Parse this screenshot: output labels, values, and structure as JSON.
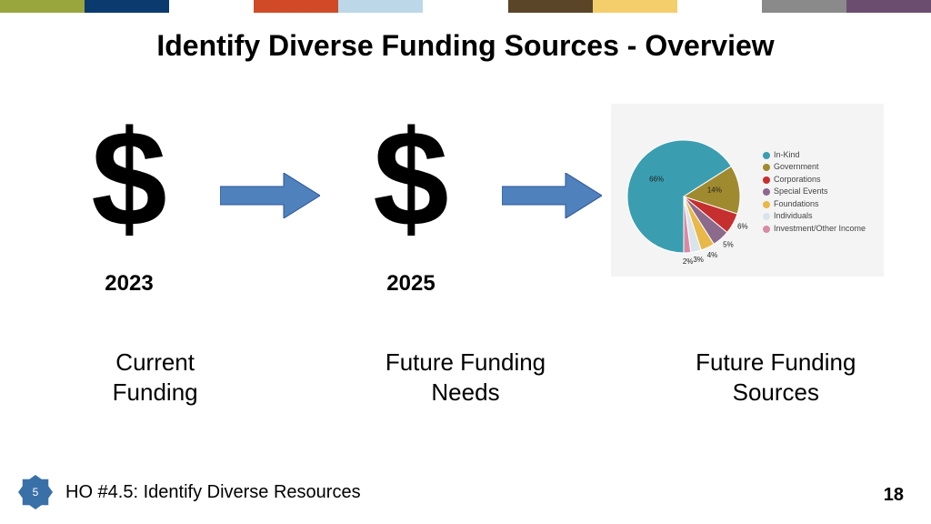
{
  "topbar_colors": [
    "#99a63d",
    "#0a3a6e",
    "#ffffff",
    "#d04a28",
    "#bcd7e8",
    "#ffffff",
    "#5b4528",
    "#f3ce6b",
    "#ffffff",
    "#8a8a8a",
    "#6b4e6f"
  ],
  "title": "Identify Diverse Funding Sources - Overview",
  "columns": {
    "left": {
      "year": "2023",
      "caption_line1": "Current",
      "caption_line2": "Funding"
    },
    "middle": {
      "year": "2025",
      "caption_line1": "Future Funding",
      "caption_line2": "Needs"
    },
    "right": {
      "caption_line1": "Future Funding",
      "caption_line2": "Sources"
    }
  },
  "arrow": {
    "fill": "#4f81bd",
    "stroke": "#2f5597"
  },
  "dollar_color": "#000000",
  "pie": {
    "background": "#f4f4f4",
    "slices": [
      {
        "label": "In-Kind",
        "value": 66,
        "color": "#3a9eb0",
        "show_pct": "66%"
      },
      {
        "label": "Government",
        "value": 14,
        "color": "#a08a2f",
        "show_pct": "14%"
      },
      {
        "label": "Corporations",
        "value": 6,
        "color": "#c62f2f",
        "show_pct": "6%"
      },
      {
        "label": "Special Events",
        "value": 5,
        "color": "#8c6a8c",
        "show_pct": "5%"
      },
      {
        "label": "Foundations",
        "value": 4,
        "color": "#e8b84a",
        "show_pct": "4%"
      },
      {
        "label": "Individuals",
        "value": 3,
        "color": "#d9e4ea",
        "show_pct": "3%"
      },
      {
        "label": "Investment/Other Income",
        "value": 2,
        "color": "#d88aa4",
        "show_pct": "2%"
      }
    ]
  },
  "footer": {
    "badge_number": "5",
    "badge_color": "#3970a8",
    "text": "HO #4.5: Identify Diverse Resources",
    "page_number": "18"
  }
}
